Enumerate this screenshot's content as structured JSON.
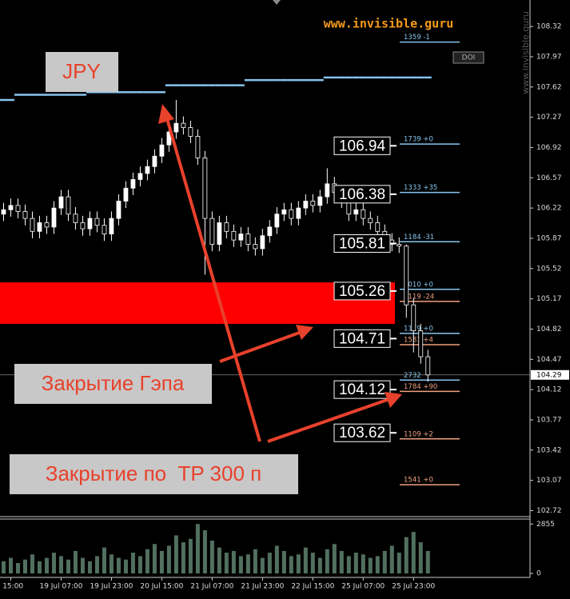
{
  "chart_data": {
    "type": "candlestick",
    "title": "JPY",
    "watermark": "www.invisible.guru",
    "watermark_vertical": "www.invisible.guru",
    "button": "DOI",
    "annotations": [
      "Закрытие Гэпа",
      "Закрытие по  TP 300 п"
    ],
    "colors": {
      "up": "#ffffff",
      "down": "#000000",
      "wick": "#ffffff"
    },
    "xlim": [
      -0.5,
      73.2
    ],
    "xticks": [
      {
        "value": 1,
        "label": "l 15:00"
      },
      {
        "value": 8,
        "label": "19 Jul 07:00"
      },
      {
        "value": 15,
        "label": "19 Jul 23:00"
      },
      {
        "value": 22,
        "label": "20 Jul 15:00"
      },
      {
        "value": 29,
        "label": "21 Jul 07:00"
      },
      {
        "value": 36,
        "label": "21 Jul 23:00"
      },
      {
        "value": 43,
        "label": "22 Jul 15:00"
      },
      {
        "value": 50,
        "label": "25 Jul 07:00"
      },
      {
        "value": 57,
        "label": "25 Jul 23:00"
      }
    ],
    "ylim": [
      102.66,
      108.58
    ],
    "yticks": [
      108.32,
      107.97,
      107.62,
      107.27,
      106.92,
      106.57,
      106.22,
      105.87,
      105.52,
      105.17,
      104.82,
      104.47,
      104.12,
      103.77,
      103.42,
      103.07,
      102.72
    ],
    "open": [
      106.15,
      106.2,
      106.25,
      106.18,
      106.1,
      105.95,
      106.05,
      106.0,
      106.22,
      106.35,
      106.15,
      106.05,
      105.98,
      106.1,
      106.02,
      105.92,
      106.1,
      106.3,
      106.45,
      106.55,
      106.62,
      106.7,
      106.82,
      106.95,
      107.1,
      107.2,
      107.15,
      107.05,
      106.8,
      106.1,
      105.8,
      106.05,
      105.95,
      105.85,
      105.92,
      105.8,
      105.75,
      105.9,
      106.0,
      106.15,
      106.2,
      106.1,
      106.22,
      106.3,
      106.25,
      106.35,
      106.5,
      106.4,
      106.3,
      106.15,
      106.2,
      106.1,
      106.05,
      105.95,
      105.85,
      105.8,
      105.78,
      105.1,
      104.8,
      104.5
    ],
    "high": [
      106.28,
      106.33,
      106.33,
      106.26,
      106.18,
      106.13,
      106.13,
      106.3,
      106.43,
      106.43,
      106.23,
      106.13,
      106.18,
      106.18,
      106.1,
      106.18,
      106.38,
      106.53,
      106.63,
      106.7,
      106.78,
      106.9,
      107.03,
      107.18,
      107.47,
      107.28,
      107.23,
      107.13,
      106.88,
      106.18,
      106.13,
      106.13,
      106.03,
      106.0,
      106.0,
      105.88,
      105.98,
      106.08,
      106.23,
      106.28,
      106.28,
      106.3,
      106.38,
      106.38,
      106.43,
      106.68,
      106.58,
      106.48,
      106.38,
      106.28,
      106.28,
      106.18,
      106.13,
      106.03,
      105.93,
      105.88,
      105.8,
      105.18,
      104.88,
      104.58
    ],
    "low": [
      106.07,
      106.12,
      106.1,
      106.02,
      105.87,
      105.87,
      105.92,
      105.92,
      106.14,
      106.07,
      105.97,
      105.9,
      105.9,
      105.94,
      105.84,
      105.84,
      106.02,
      106.22,
      106.37,
      106.47,
      106.54,
      106.62,
      106.74,
      106.87,
      107.02,
      107.07,
      106.97,
      106.72,
      105.45,
      105.72,
      105.72,
      105.87,
      105.77,
      105.77,
      105.72,
      105.67,
      105.67,
      105.82,
      105.92,
      106.07,
      106.02,
      106.02,
      106.14,
      106.17,
      106.17,
      106.27,
      106.32,
      106.22,
      106.07,
      106.07,
      106.02,
      105.97,
      105.87,
      105.77,
      105.72,
      105.7,
      104.95,
      104.55,
      104.42,
      104.21
    ],
    "close": [
      106.2,
      106.25,
      106.18,
      106.1,
      105.95,
      106.05,
      106.0,
      106.22,
      106.35,
      106.15,
      106.05,
      105.98,
      106.1,
      106.02,
      105.92,
      106.1,
      106.3,
      106.45,
      106.55,
      106.62,
      106.7,
      106.82,
      106.95,
      107.1,
      107.2,
      107.15,
      107.05,
      106.8,
      106.1,
      105.8,
      106.05,
      105.95,
      105.85,
      105.92,
      105.8,
      105.75,
      105.9,
      106.0,
      106.15,
      106.2,
      106.1,
      106.22,
      106.3,
      106.25,
      106.35,
      106.5,
      106.4,
      106.3,
      106.15,
      106.2,
      106.1,
      106.05,
      105.95,
      105.85,
      105.8,
      105.78,
      105.1,
      104.8,
      104.5,
      104.29
    ],
    "ma": {
      "color": "#87c5ef",
      "values": [
        107.47,
        107.47,
        107.53,
        107.53,
        107.53,
        107.53,
        107.53,
        107.53,
        107.53,
        107.53,
        107.53,
        107.53,
        107.56,
        107.56,
        107.56,
        107.56,
        107.56,
        107.56,
        107.56,
        107.56,
        107.56,
        107.56,
        107.56,
        107.64,
        107.64,
        107.64,
        107.64,
        107.64,
        107.64,
        107.64,
        107.64,
        107.64,
        107.64,
        107.64,
        107.7,
        107.7,
        107.7,
        107.7,
        107.7,
        107.7,
        107.7,
        107.7,
        107.7,
        107.7,
        107.7,
        107.73,
        107.73,
        107.73,
        107.73,
        107.73,
        107.73,
        107.73,
        107.73,
        107.73,
        107.73,
        107.73,
        107.73,
        107.73,
        107.73,
        107.73
      ]
    },
    "gap_zone": {
      "range": [
        104.88,
        105.36
      ],
      "color": "#ff0000"
    },
    "price_boxes": [
      106.94,
      106.38,
      105.81,
      105.26,
      104.71,
      104.12,
      103.62
    ],
    "levels": [
      {
        "label": "1359 -1",
        "value": 108.14,
        "color": "#87c5ef"
      },
      {
        "label": "1739 +0",
        "value": 106.96,
        "color": "#87c5ef"
      },
      {
        "label": "1333 +35",
        "value": 106.4,
        "color": "#87c5ef"
      },
      {
        "label": "1184 -31",
        "value": 105.83,
        "color": "#87c5ef"
      },
      {
        "label": "3010 +0",
        "value": 105.28,
        "color": "#87c5ef"
      },
      {
        "label": "1119 -24",
        "value": 105.14,
        "color": "#f0a080"
      },
      {
        "label": "1179 +0",
        "value": 104.77,
        "color": "#87c5ef"
      },
      {
        "label": "1583 +4",
        "value": 104.64,
        "color": "#f0a080"
      },
      {
        "label": "2732",
        "value": 104.23,
        "color": "#87c5ef"
      },
      {
        "label": "1784 +90",
        "value": 104.1,
        "color": "#f0a080"
      },
      {
        "label": "1109 +2",
        "value": 103.55,
        "color": "#f0a080"
      },
      {
        "label": "1541 +0",
        "value": 103.02,
        "color": "#f0a080"
      }
    ],
    "current_price": 104.29,
    "volume": {
      "color": "#52705f",
      "ylim": [
        0,
        3100
      ],
      "yticks": [
        0,
        2855
      ],
      "values": [
        700,
        900,
        600,
        800,
        1100,
        700,
        900,
        1200,
        1000,
        800,
        1300,
        900,
        700,
        1000,
        1500,
        1100,
        900,
        800,
        1200,
        1000,
        1400,
        1700,
        1300,
        1600,
        2200,
        1800,
        2000,
        2855,
        2500,
        1900,
        1500,
        1200,
        1300,
        1000,
        1100,
        1400,
        900,
        1200,
        1600,
        1300,
        1000,
        1100,
        1500,
        1200,
        900,
        1400,
        1700,
        1300,
        1000,
        1200,
        1100,
        900,
        1000,
        1300,
        1600,
        1200,
        2100,
        2400,
        1800,
        1300
      ]
    }
  }
}
